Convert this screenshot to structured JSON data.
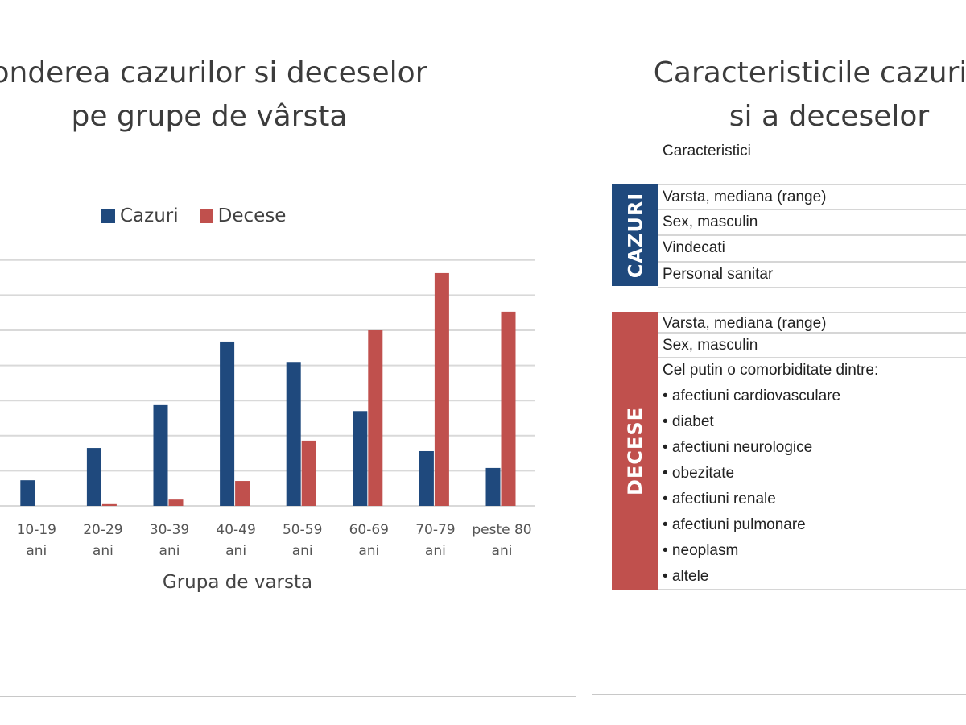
{
  "chart_data": {
    "type": "bar",
    "title": "Ponderea cazurilor si deceselor pe grupe de vârsta",
    "title_visible": "onderea cazurilor si deceselor",
    "title_line2": "pe grupe de vârsta",
    "xlabel": "Grupa de varsta",
    "ylabel": "",
    "categories": [
      "10-19 ani",
      "20-29 ani",
      "30-39 ani",
      "40-49 ani",
      "50-59 ani",
      "60-69 ani",
      "70-79 ani",
      "peste 80 ani"
    ],
    "category_lines": [
      [
        "10-19",
        "ani"
      ],
      [
        "20-29",
        "ani"
      ],
      [
        "30-39",
        "ani"
      ],
      [
        "40-49",
        "ani"
      ],
      [
        "50-59",
        "ani"
      ],
      [
        "60-69",
        "ani"
      ],
      [
        "70-79",
        "ani"
      ],
      [
        "peste 80",
        "ani"
      ]
    ],
    "series": [
      {
        "name": "Cazuri",
        "color": "#1f497d",
        "values": [
          0.73,
          1.65,
          2.87,
          4.68,
          4.1,
          2.7,
          1.56,
          1.08
        ]
      },
      {
        "name": "Decese",
        "color": "#c0504d",
        "values": [
          0,
          0.05,
          0.18,
          0.71,
          1.86,
          5.0,
          6.63,
          5.53
        ]
      }
    ],
    "ylim": [
      0,
      7
    ],
    "grid": true,
    "legend": "top"
  },
  "table": {
    "title_line1": "Caracteristicile cazurilor",
    "title_line2": "si a deceselor",
    "header": "Caracteristici",
    "cazuri_label": "CAZURI",
    "decese_label": "DECESE",
    "cazuri_rows": [
      "Varsta, mediana (range)",
      "Sex, masculin",
      "Vindecati",
      "Personal sanitar"
    ],
    "decese_rows": [
      "Varsta, mediana (range)",
      "Sex, masculin",
      "Cel putin o comorbiditate dintre:",
      "• afectiuni cardiovasculare",
      "• diabet",
      "• afectiuni neurologice",
      "• obezitate",
      "• afectiuni renale",
      "• afectiuni pulmonare",
      "• neoplasm",
      "• altele"
    ]
  }
}
